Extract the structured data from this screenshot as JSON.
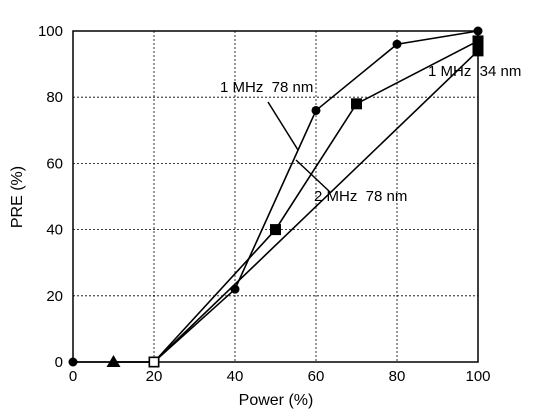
{
  "chart_data": {
    "type": "line",
    "xlabel": "Power (%)",
    "ylabel": "PRE (%)",
    "xlim": [
      0,
      100
    ],
    "ylim": [
      0,
      100
    ],
    "x_ticks": [
      "0",
      "20",
      "40",
      "60",
      "80",
      "100"
    ],
    "y_ticks": [
      "0",
      "20",
      "40",
      "60",
      "80",
      "100"
    ],
    "grid": "dashed",
    "series": [
      {
        "name": "1 MHz  78 nm",
        "marker": "circle",
        "points": [
          [
            0,
            0
          ],
          [
            20,
            0
          ],
          [
            40,
            22
          ],
          [
            60,
            76
          ],
          [
            80,
            96
          ],
          [
            100,
            100
          ]
        ]
      },
      {
        "name": "2 MHz  78 nm",
        "marker": "square",
        "points": [
          [
            20,
            0
          ],
          [
            50,
            40
          ],
          [
            70,
            78
          ],
          [
            100,
            97
          ]
        ]
      },
      {
        "name": "1 MHz  34 nm",
        "marker": "square",
        "points": [
          [
            10,
            0
          ],
          [
            20,
            0
          ],
          [
            100,
            94
          ]
        ]
      }
    ],
    "extra_markers": [
      {
        "shape": "triangle",
        "x": 10,
        "y": 0
      },
      {
        "shape": "open-square",
        "x": 20,
        "y": 0
      }
    ]
  }
}
